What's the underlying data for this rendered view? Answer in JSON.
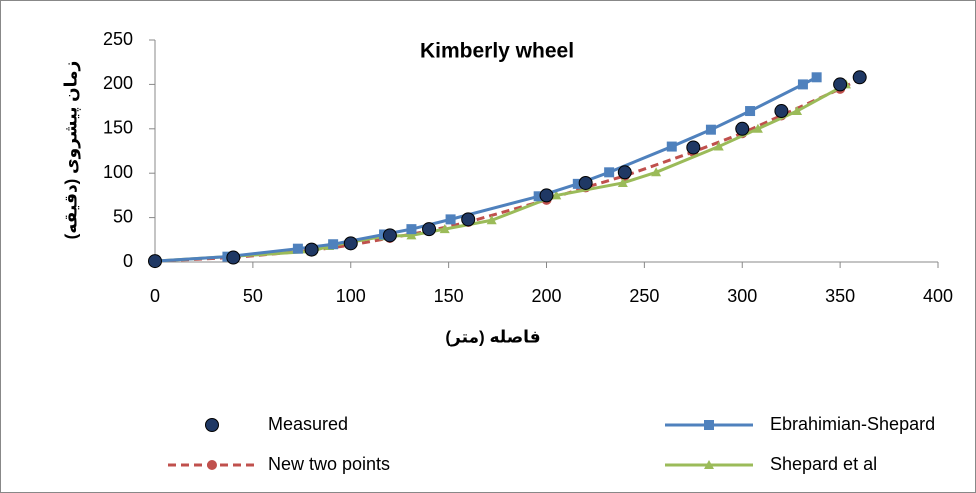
{
  "chart_data": {
    "type": "scatter",
    "title": "Kimberly wheel",
    "x_label": "فاصله (متر)",
    "y_label": "زمان پیشروی (دقیقه)",
    "xlim": [
      0,
      400
    ],
    "xticks": [
      0,
      50,
      100,
      150,
      200,
      250,
      300,
      350,
      400
    ],
    "ylim": [
      0,
      250
    ],
    "yticks": [
      0,
      50,
      100,
      150,
      200,
      250
    ],
    "grid": false,
    "legend": "bottom",
    "series": [
      {
        "name": "Measured",
        "color": "#1f3864",
        "marker": "circle",
        "line": "none",
        "x": [
          0,
          40,
          80,
          100,
          120,
          140,
          160,
          200,
          220,
          240,
          275,
          300,
          320,
          350,
          360
        ],
        "values": [
          1,
          5,
          14,
          21,
          30,
          37,
          48,
          75,
          89,
          101,
          129,
          150,
          170,
          200,
          208
        ]
      },
      {
        "name": "Ebrahimian-Shepard",
        "color": "#4f81bd",
        "marker": "square",
        "line": "solid",
        "x": [
          0,
          37,
          73,
          91,
          117,
          131,
          151,
          196,
          216,
          232,
          264,
          284,
          304,
          331,
          338
        ],
        "values": [
          1,
          6,
          15,
          20,
          31,
          37,
          48,
          74,
          88,
          101,
          130,
          149,
          170,
          200,
          208
        ]
      },
      {
        "name": "New two points",
        "color": "#c0504d",
        "marker": "circle",
        "line": "dashed",
        "x": [
          0,
          40,
          80,
          100,
          120,
          140,
          160,
          200,
          220,
          240,
          275,
          300,
          320,
          350,
          360
        ],
        "values": [
          1,
          5,
          13,
          19,
          27,
          35,
          45,
          70,
          84,
          97,
          124,
          145,
          165,
          195,
          206
        ]
      },
      {
        "name": "Shepard et al",
        "color": "#9bbb59",
        "marker": "triangle",
        "line": "solid",
        "x": [
          0,
          80,
          89,
          117,
          131,
          148,
          172,
          205,
          239,
          256,
          288,
          308,
          328,
          353
        ],
        "values": [
          1,
          12,
          18,
          29,
          30,
          37,
          47,
          75,
          89,
          101,
          130,
          150,
          170,
          200
        ]
      }
    ]
  }
}
